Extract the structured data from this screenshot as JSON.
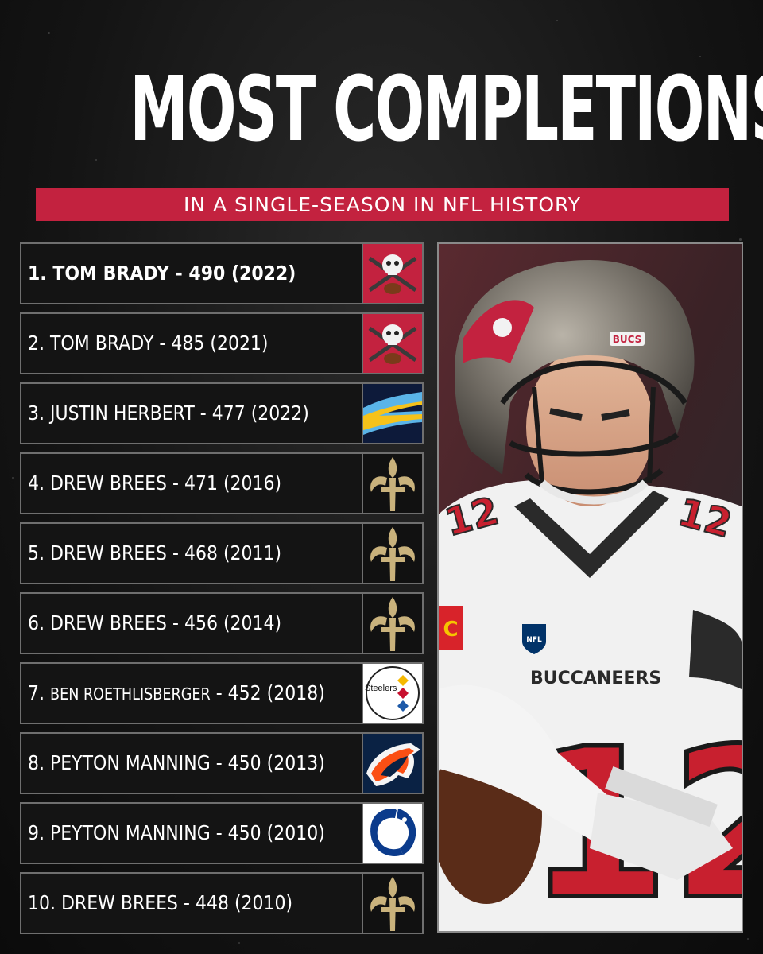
{
  "title": "MOST COMPLETIONS",
  "subtitle": "IN A SINGLE-SEASON IN NFL HISTORY",
  "rankings": [
    {
      "rank": "1.",
      "player": "TOM BRADY",
      "completions": "490",
      "season": "2022",
      "team_logo": "buccaneers-logo"
    },
    {
      "rank": "2.",
      "player": "TOM BRADY",
      "completions": "485",
      "season": "2021",
      "team_logo": "buccaneers-logo"
    },
    {
      "rank": "3.",
      "player": "JUSTIN HERBERT",
      "completions": "477",
      "season": "2022",
      "team_logo": "chargers-logo"
    },
    {
      "rank": "4.",
      "player": "DREW BREES",
      "completions": "471",
      "season": "2016",
      "team_logo": "saints-logo"
    },
    {
      "rank": "5.",
      "player": "DREW BREES",
      "completions": "468",
      "season": "2011",
      "team_logo": "saints-logo"
    },
    {
      "rank": "6.",
      "player": "DREW BREES",
      "completions": "456",
      "season": "2014",
      "team_logo": "saints-logo"
    },
    {
      "rank": "7.",
      "player": "BEN ROETHLISBERGER",
      "completions": "452",
      "season": "2018",
      "team_logo": "steelers-logo"
    },
    {
      "rank": "8.",
      "player": "PEYTON MANNING",
      "completions": "450",
      "season": "2013",
      "team_logo": "broncos-logo"
    },
    {
      "rank": "9.",
      "player": "PEYTON MANNING",
      "completions": "450",
      "season": "2010",
      "team_logo": "colts-logo"
    },
    {
      "rank": "10.",
      "player": "DREW BREES",
      "completions": "448",
      "season": "2010",
      "team_logo": "saints-logo"
    }
  ],
  "logo_text": {
    "steelers": "Steelers"
  },
  "photo": {
    "helmet_text": "BUCS",
    "jersey_text": "BUCCANEERS",
    "jersey_number": "12",
    "captain_patch": "C",
    "league_badge": "NFL"
  },
  "colors": {
    "banner": "#c3223f",
    "background": "#141414",
    "row_border": "#6f6f6f",
    "text": "#ffffff"
  }
}
